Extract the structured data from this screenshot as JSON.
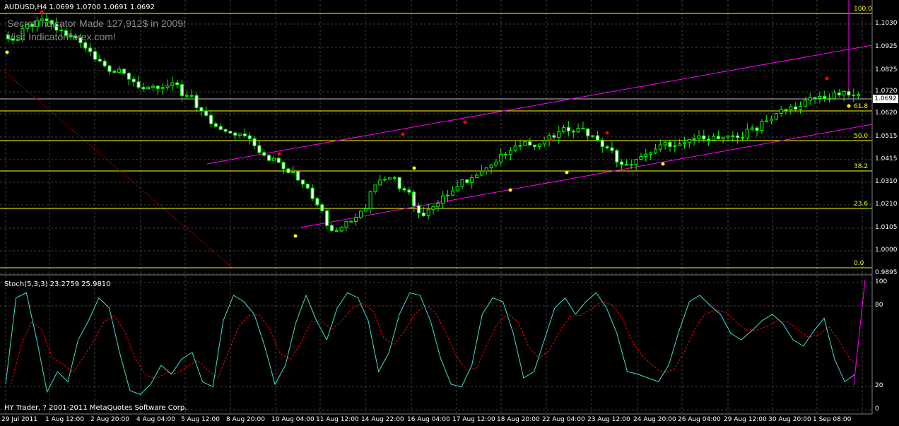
{
  "window": {
    "symbol_title": "AUDUSD,H4  1.0699 1.0700 1.0691 1.0692",
    "watermark_line1": "Secret Indicator Made 127,912$ in 2009!",
    "watermark_line2": "Visit IndicatorForex.com!",
    "stoch_title": "Stoch(5,3,3) 23.2759 25.9810",
    "copyright": "HY Trader, ? 2001-2011 MetaQuotes Software Corp.",
    "current_price": "1.0692"
  },
  "colors": {
    "background": "#000000",
    "grid": "#404040",
    "candle_bull": "#ffffff",
    "candle_line": "#00ff00",
    "fib": "#ffff00",
    "channel": "#ff00ff",
    "fractal_up": "#ff0000",
    "fractal_down": "#ffff00",
    "stoch_main": "#40e0d0",
    "stoch_signal": "#ff0000"
  },
  "price_axis": {
    "ticks": [
      "1.1030",
      "1.0925",
      "1.0825",
      "1.0720",
      "1.0620",
      "1.0515",
      "1.0415",
      "1.0310",
      "1.0210",
      "1.0105",
      "1.0000",
      "0.9895"
    ]
  },
  "stoch_axis": {
    "ticks": [
      "100",
      "80",
      "20",
      "0"
    ]
  },
  "fibonacci": {
    "levels": [
      "100.0",
      "61.8",
      "50.0",
      "38.2",
      "23.6",
      "0.0"
    ]
  },
  "time_axis": {
    "labels": [
      "29 Jul 2011",
      "1 Aug 12:00",
      "2 Aug 20:00",
      "4 Aug 04:00",
      "5 Aug 12:00",
      "8 Aug 20:00",
      "10 Aug 04:00",
      "11 Aug 12:00",
      "14 Aug 22:00",
      "16 Aug 04:00",
      "17 Aug 12:00",
      "18 Aug 20:00",
      "22 Aug 04:00",
      "23 Aug 12:00",
      "24 Aug 20:00",
      "26 Aug 04:00",
      "29 Aug 12:00",
      "30 Aug 20:00",
      "1 Sep 08:00"
    ]
  },
  "chart_data": {
    "type": "candlestick",
    "title": "AUDUSD,H4",
    "price_range": [
      0.9895,
      1.103
    ],
    "candles_close_approx": [
      1.096,
      1.103,
      1.104,
      1.099,
      1.096,
      1.091,
      1.085,
      1.081,
      1.076,
      1.072,
      1.073,
      1.075,
      1.069,
      1.062,
      1.056,
      1.052,
      1.051,
      1.044,
      1.041,
      1.036,
      1.028,
      1.016,
      1.008,
      1.015,
      1.021,
      1.036,
      1.034,
      1.023,
      1.013,
      1.02,
      1.029,
      1.032,
      1.036,
      1.04,
      1.046,
      1.051,
      1.047,
      1.052,
      1.055,
      1.056,
      1.05,
      1.043,
      1.037,
      1.042,
      1.046,
      1.048,
      1.047,
      1.051,
      1.052,
      1.05,
      1.052,
      1.056,
      1.061,
      1.064,
      1.066,
      1.069,
      1.07,
      1.071,
      1.0692
    ],
    "stochastic": {
      "main": "Stoch(5,3,3)",
      "last_main": 23.2759,
      "last_signal": 25.981,
      "range": [
        0,
        100
      ]
    }
  }
}
